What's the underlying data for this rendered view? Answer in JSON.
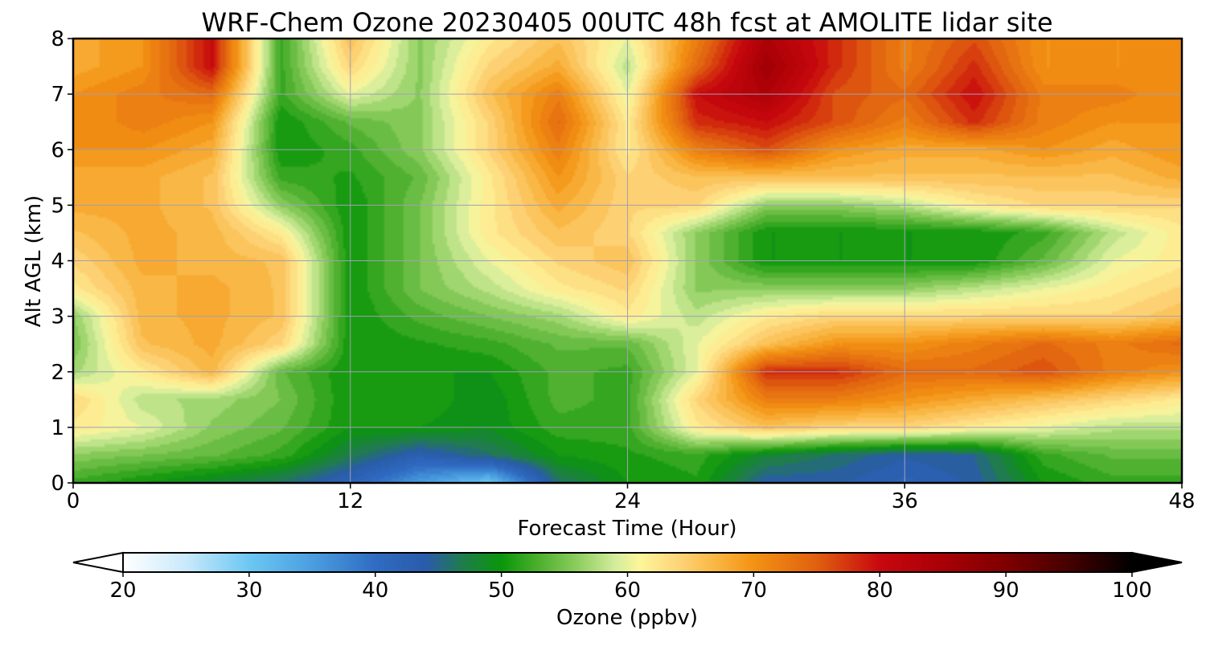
{
  "chart_data": {
    "type": "heatmap",
    "title": "WRF-Chem Ozone  20230405 00UTC 48h fcst at AMOLITE lidar site",
    "xlabel": "Forecast Time (Hour)",
    "ylabel": "Alt AGL (km)",
    "xlim": [
      0,
      48
    ],
    "ylim": [
      0,
      8
    ],
    "x_ticks": [
      0,
      12,
      24,
      36,
      48
    ],
    "y_ticks": [
      0,
      1,
      2,
      3,
      4,
      5,
      6,
      7,
      8
    ],
    "grid": true,
    "x": [
      0,
      3,
      6,
      9,
      12,
      15,
      18,
      21,
      24,
      27,
      30,
      33,
      36,
      39,
      42,
      45,
      48
    ],
    "y": [
      0,
      0.5,
      1,
      1.5,
      2,
      2.5,
      3,
      3.5,
      4,
      4.5,
      5,
      5.5,
      6,
      6.5,
      7,
      7.5,
      8
    ],
    "z": [
      [
        52,
        50,
        48,
        46,
        42,
        35,
        30,
        46,
        50,
        51,
        44,
        44,
        42,
        44,
        50,
        52,
        52
      ],
      [
        56,
        55,
        54,
        52,
        47,
        43,
        46,
        50,
        51,
        52,
        48,
        46,
        44,
        45,
        52,
        54,
        54
      ],
      [
        62,
        60,
        56,
        54,
        50,
        50,
        49,
        52,
        52,
        62,
        66,
        64,
        64,
        62,
        60,
        58,
        58
      ],
      [
        64,
        58,
        57,
        55,
        50,
        51,
        49,
        53,
        52,
        64,
        72,
        72,
        70,
        68,
        66,
        64,
        62
      ],
      [
        57,
        62,
        67,
        54,
        50,
        50,
        50,
        53,
        52,
        60,
        78,
        78,
        74,
        74,
        76,
        72,
        70
      ],
      [
        55,
        66,
        68,
        64,
        50,
        51,
        52,
        54,
        54,
        60,
        66,
        70,
        70,
        72,
        74,
        72,
        74
      ],
      [
        56,
        67,
        68,
        66,
        50,
        53,
        55,
        57,
        62,
        58,
        62,
        64,
        64,
        64,
        64,
        64,
        66
      ],
      [
        62,
        67,
        68,
        66,
        50,
        55,
        58,
        62,
        64,
        56,
        56,
        56,
        56,
        58,
        60,
        62,
        64
      ],
      [
        64,
        68,
        67,
        66,
        50,
        55,
        60,
        64,
        66,
        56,
        50,
        50,
        50,
        50,
        54,
        60,
        62
      ],
      [
        66,
        68,
        67,
        62,
        50,
        55,
        62,
        66,
        64,
        56,
        50,
        50,
        50,
        50,
        52,
        58,
        62
      ],
      [
        68,
        68,
        66,
        56,
        50,
        55,
        62,
        68,
        64,
        64,
        56,
        56,
        58,
        62,
        64,
        64,
        64
      ],
      [
        68,
        68,
        66,
        52,
        51,
        54,
        62,
        70,
        64,
        66,
        66,
        66,
        66,
        66,
        66,
        66,
        68
      ],
      [
        70,
        70,
        68,
        50,
        52,
        56,
        64,
        72,
        62,
        72,
        76,
        70,
        68,
        68,
        70,
        68,
        70
      ],
      [
        70,
        72,
        70,
        50,
        54,
        56,
        64,
        74,
        62,
        78,
        80,
        76,
        72,
        78,
        72,
        70,
        70
      ],
      [
        70,
        72,
        74,
        52,
        60,
        56,
        66,
        72,
        60,
        80,
        84,
        76,
        74,
        80,
        72,
        72,
        70
      ],
      [
        68,
        70,
        80,
        52,
        64,
        56,
        64,
        68,
        58,
        74,
        86,
        78,
        72,
        78,
        70,
        70,
        70
      ],
      [
        68,
        70,
        80,
        52,
        66,
        56,
        62,
        66,
        60,
        72,
        84,
        78,
        72,
        76,
        70,
        70,
        70
      ]
    ],
    "colorbar": {
      "label": "Ozone  (ppbv)",
      "ticks": [
        20,
        30,
        40,
        50,
        60,
        70,
        80,
        90,
        100
      ],
      "min": 20,
      "max": 100,
      "extend": "both",
      "stops": [
        {
          "v": 20,
          "c": "#ffffff"
        },
        {
          "v": 25,
          "c": "#c9e9fb"
        },
        {
          "v": 30,
          "c": "#6cc7f3"
        },
        {
          "v": 35,
          "c": "#4a9ee0"
        },
        {
          "v": 40,
          "c": "#2f6cc2"
        },
        {
          "v": 44,
          "c": "#2a5bab"
        },
        {
          "v": 47,
          "c": "#1f7d4a"
        },
        {
          "v": 50,
          "c": "#0a960a"
        },
        {
          "v": 53,
          "c": "#4eb02e"
        },
        {
          "v": 56,
          "c": "#8ccd5e"
        },
        {
          "v": 59,
          "c": "#d3ec9b"
        },
        {
          "v": 61,
          "c": "#fdf59b"
        },
        {
          "v": 64,
          "c": "#fdd57a"
        },
        {
          "v": 67,
          "c": "#f9b642"
        },
        {
          "v": 70,
          "c": "#f39213"
        },
        {
          "v": 75,
          "c": "#e0600f"
        },
        {
          "v": 80,
          "c": "#c8080e"
        },
        {
          "v": 85,
          "c": "#a80006"
        },
        {
          "v": 90,
          "c": "#7e0000"
        },
        {
          "v": 95,
          "c": "#460000"
        },
        {
          "v": 100,
          "c": "#000000"
        }
      ]
    }
  }
}
